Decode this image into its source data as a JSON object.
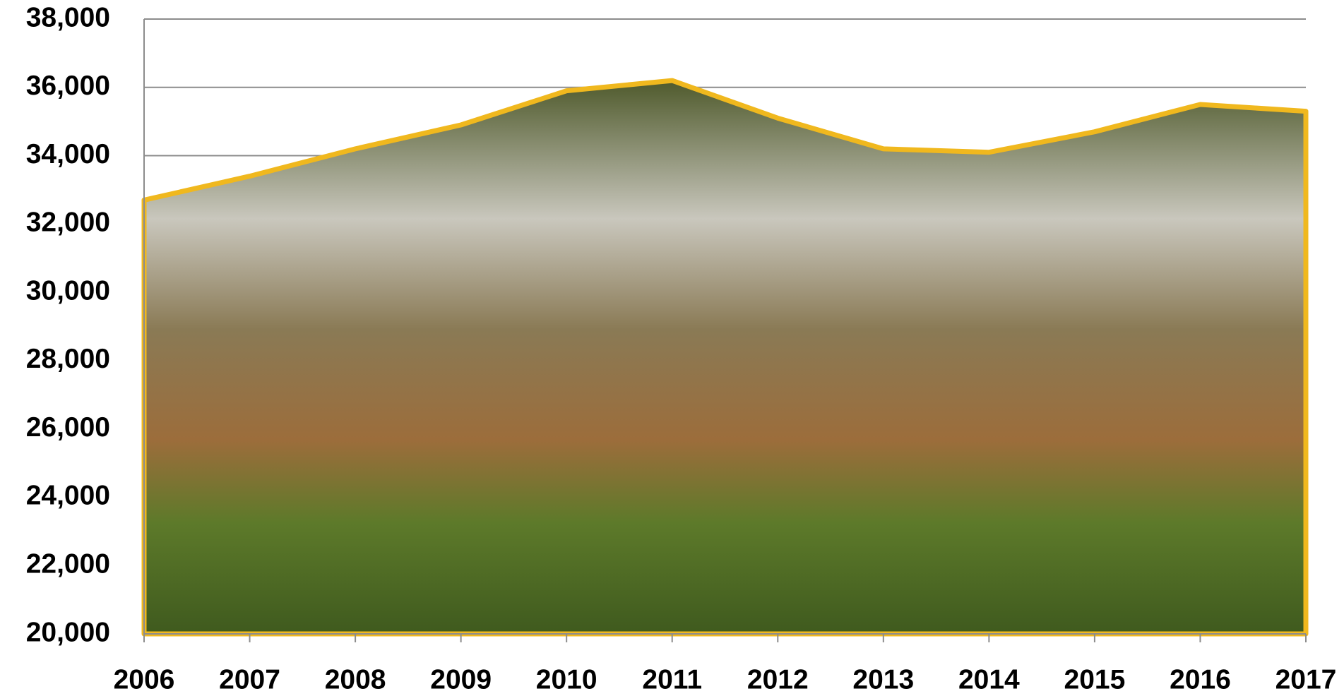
{
  "chart_data": {
    "type": "area",
    "categories": [
      "2006",
      "2007",
      "2008",
      "2009",
      "2010",
      "2011",
      "2012",
      "2013",
      "2014",
      "2015",
      "2016",
      "2017"
    ],
    "values": [
      32700,
      33400,
      34200,
      34900,
      35900,
      36200,
      35100,
      34200,
      34100,
      34700,
      35500,
      35300
    ],
    "color": "#f0b81e",
    "ylim": [
      20000,
      38000
    ],
    "yticks": [
      {
        "value": 20000,
        "label": "20,000"
      },
      {
        "value": 22000,
        "label": "22,000"
      },
      {
        "value": 24000,
        "label": "24,000"
      },
      {
        "value": 26000,
        "label": "26,000"
      },
      {
        "value": 28000,
        "label": "28,000"
      },
      {
        "value": 30000,
        "label": "30,000"
      },
      {
        "value": 32000,
        "label": "32,000"
      },
      {
        "value": 34000,
        "label": "34,000"
      },
      {
        "value": 36000,
        "label": "36,000"
      },
      {
        "value": 38000,
        "label": "38,000"
      }
    ],
    "grid": true
  }
}
